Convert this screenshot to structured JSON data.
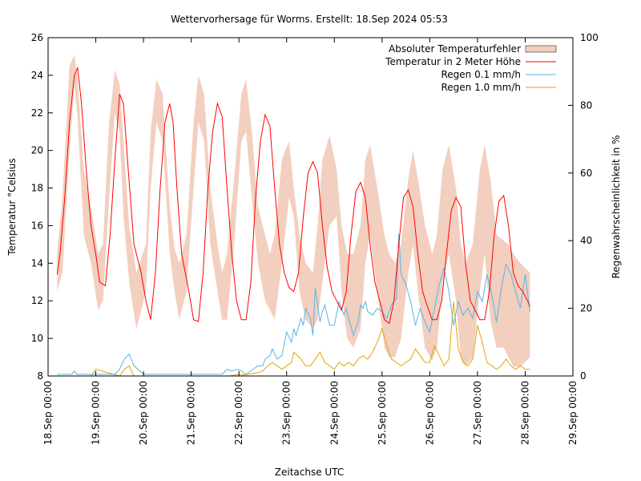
{
  "chart_data": {
    "type": "line",
    "title": "Wettervorhersage für Worms. Erstellt: 18.Sep 2024 05:53",
    "xlabel": "Zeitachse UTC",
    "ylabel_left": "Temperatur °Celsius",
    "ylabel_right": "Regenwahrscheinlichkeit in %",
    "x_unit": "days since 18.Sep 2024 00:00 UTC",
    "xlim": [
      0,
      11
    ],
    "ylim_left": [
      8,
      26
    ],
    "ylim_right": [
      0,
      100
    ],
    "x_ticks": [
      {
        "x": 0,
        "label": "18.Sep 00:00"
      },
      {
        "x": 1,
        "label": "19.Sep 00:00"
      },
      {
        "x": 2,
        "label": "20.Sep 00:00"
      },
      {
        "x": 3,
        "label": "21.Sep 00:00"
      },
      {
        "x": 4,
        "label": "22.Sep 00:00"
      },
      {
        "x": 5,
        "label": "23.Sep 00:00"
      },
      {
        "x": 6,
        "label": "24.Sep 00:00"
      },
      {
        "x": 7,
        "label": "25.Sep 00:00"
      },
      {
        "x": 8,
        "label": "26.Sep 00:00"
      },
      {
        "x": 9,
        "label": "27.Sep 00:00"
      },
      {
        "x": 10,
        "label": "28.Sep 00:00"
      },
      {
        "x": 11,
        "label": "29.Sep 00:00"
      }
    ],
    "y_left_ticks": [
      8,
      10,
      12,
      14,
      16,
      18,
      20,
      22,
      24,
      26
    ],
    "y_right_ticks": [
      0,
      20,
      40,
      60,
      80,
      100
    ],
    "grid": false,
    "legend_position": "top-right",
    "colors": {
      "error_band": "#f2cfbf",
      "temperature": "#ff0000",
      "rain01": "#56b4e9",
      "rain10": "#e6a000"
    },
    "series": [
      {
        "name": "Absoluter Temperaturfehler",
        "type": "band",
        "axis": "left",
        "x": [
          0.19,
          0.3,
          0.45,
          0.55,
          0.61,
          0.75,
          0.9,
          1.05,
          1.15,
          1.28,
          1.4,
          1.5,
          1.58,
          1.7,
          1.85,
          2.05,
          2.15,
          2.27,
          2.4,
          2.55,
          2.65,
          2.75,
          2.9,
          3.05,
          3.15,
          3.27,
          3.4,
          3.55,
          3.65,
          3.75,
          3.9,
          4.05,
          4.15,
          4.27,
          4.4,
          4.55,
          4.65,
          4.75,
          4.9,
          5.05,
          5.15,
          5.27,
          5.4,
          5.55,
          5.65,
          5.75,
          5.9,
          6.05,
          6.15,
          6.27,
          6.4,
          6.55,
          6.65,
          6.75,
          6.9,
          7.05,
          7.15,
          7.27,
          7.4,
          7.55,
          7.65,
          7.75,
          7.9,
          8.05,
          8.15,
          8.27,
          8.4,
          8.55,
          8.65,
          8.75,
          8.9,
          9.05,
          9.15,
          9.27,
          9.4,
          9.55,
          9.65,
          9.75,
          9.9,
          10.1
        ],
        "upper": [
          14.5,
          17.5,
          24.5,
          25.1,
          24.0,
          19.0,
          17.0,
          14.5,
          15.0,
          21.5,
          24.3,
          23.5,
          20.5,
          16.0,
          13.5,
          15.0,
          21.0,
          23.8,
          23.0,
          17.0,
          14.8,
          14.0,
          15.5,
          21.5,
          24.0,
          23.0,
          18.0,
          15.0,
          13.5,
          14.5,
          18.5,
          23.0,
          23.8,
          21.0,
          17.0,
          15.5,
          14.5,
          15.5,
          19.5,
          20.5,
          18.0,
          15.5,
          14.0,
          13.5,
          16.0,
          19.5,
          20.8,
          19.0,
          16.0,
          14.5,
          14.5,
          16.0,
          19.5,
          20.3,
          18.0,
          15.5,
          14.5,
          14.0,
          15.0,
          18.5,
          20.0,
          18.5,
          16.0,
          14.5,
          15.5,
          19.0,
          20.3,
          18.0,
          15.0,
          14.0,
          15.0,
          19.0,
          20.3,
          18.5,
          15.5,
          15.2,
          15.0,
          14.5,
          14.0,
          13.5
        ],
        "lower": [
          12.5,
          13.5,
          20.0,
          23.5,
          22.0,
          15.5,
          14.0,
          11.5,
          12.0,
          17.5,
          22.0,
          21.0,
          16.5,
          13.0,
          10.5,
          12.5,
          18.0,
          21.5,
          20.5,
          14.5,
          12.5,
          11.0,
          12.5,
          18.0,
          21.5,
          20.5,
          15.0,
          12.5,
          11.0,
          11.0,
          15.0,
          20.5,
          21.0,
          17.5,
          14.0,
          12.0,
          11.5,
          11.0,
          14.0,
          17.5,
          16.5,
          12.5,
          11.0,
          10.5,
          11.0,
          13.0,
          16.0,
          16.5,
          12.5,
          10.0,
          9.5,
          10.5,
          14.0,
          15.5,
          12.5,
          9.5,
          9.0,
          9.0,
          10.0,
          13.5,
          15.0,
          12.5,
          9.5,
          8.8,
          9.5,
          13.0,
          14.5,
          12.0,
          9.0,
          8.5,
          9.0,
          12.5,
          14.5,
          11.0,
          9.5,
          9.5,
          9.0,
          8.5,
          8.5,
          9.0
        ]
      },
      {
        "name": "Temperatur in 2 Meter Höhe",
        "type": "line",
        "axis": "left",
        "x": [
          0.19,
          0.25,
          0.35,
          0.45,
          0.55,
          0.62,
          0.7,
          0.8,
          0.9,
          1.0,
          1.08,
          1.2,
          1.3,
          1.4,
          1.5,
          1.58,
          1.68,
          1.8,
          1.95,
          2.05,
          2.15,
          2.25,
          2.35,
          2.45,
          2.55,
          2.62,
          2.7,
          2.8,
          2.95,
          3.05,
          3.15,
          3.25,
          3.35,
          3.45,
          3.55,
          3.65,
          3.75,
          3.85,
          3.95,
          4.05,
          4.15,
          4.25,
          4.35,
          4.45,
          4.55,
          4.65,
          4.75,
          4.85,
          4.95,
          5.05,
          5.15,
          5.25,
          5.35,
          5.45,
          5.55,
          5.65,
          5.75,
          5.85,
          5.95,
          6.05,
          6.15,
          6.25,
          6.35,
          6.45,
          6.55,
          6.65,
          6.75,
          6.85,
          6.95,
          7.05,
          7.15,
          7.25,
          7.35,
          7.45,
          7.55,
          7.65,
          7.75,
          7.85,
          7.95,
          8.05,
          8.15,
          8.25,
          8.35,
          8.45,
          8.55,
          8.65,
          8.75,
          8.85,
          8.95,
          9.05,
          9.15,
          9.25,
          9.35,
          9.45,
          9.55,
          9.65,
          9.75,
          9.85,
          9.95,
          10.05,
          10.1
        ],
        "y": [
          13.4,
          14.5,
          17.5,
          21.5,
          24.0,
          24.4,
          22.5,
          19.0,
          16.0,
          14.5,
          13.0,
          12.8,
          15.5,
          19.5,
          23.0,
          22.5,
          19.0,
          15.0,
          13.5,
          12.0,
          11.0,
          13.5,
          18.0,
          21.5,
          22.5,
          21.5,
          18.0,
          14.5,
          12.5,
          11.0,
          10.9,
          13.5,
          18.0,
          21.0,
          22.5,
          21.8,
          18.0,
          14.5,
          12.0,
          11.0,
          11.0,
          13.0,
          17.5,
          20.5,
          21.9,
          21.3,
          18.0,
          15.0,
          13.5,
          12.7,
          12.5,
          13.5,
          16.5,
          18.8,
          19.4,
          18.8,
          16.0,
          13.8,
          12.5,
          12.0,
          11.5,
          12.5,
          15.5,
          17.8,
          18.3,
          17.5,
          15.0,
          13.0,
          12.0,
          11.0,
          10.8,
          12.0,
          15.0,
          17.5,
          17.9,
          17.0,
          14.5,
          12.5,
          11.7,
          11.0,
          11.0,
          12.0,
          14.5,
          16.8,
          17.5,
          17.0,
          14.0,
          12.0,
          11.5,
          11.0,
          11.0,
          12.5,
          15.5,
          17.3,
          17.6,
          16.0,
          13.5,
          12.8,
          12.5,
          12.0,
          11.7
        ]
      },
      {
        "name": "Regen 0.1 mm/h",
        "type": "line",
        "axis": "right",
        "x": [
          0.19,
          0.5,
          0.55,
          0.6,
          0.7,
          0.8,
          1.0,
          1.2,
          1.4,
          1.5,
          1.6,
          1.7,
          1.8,
          2.0,
          2.5,
          3.0,
          3.5,
          3.65,
          3.75,
          3.85,
          3.95,
          4.05,
          4.15,
          4.3,
          4.4,
          4.5,
          4.55,
          4.65,
          4.7,
          4.8,
          4.9,
          5.0,
          5.1,
          5.15,
          5.2,
          5.3,
          5.35,
          5.4,
          5.5,
          5.55,
          5.6,
          5.7,
          5.75,
          5.8,
          5.9,
          6.0,
          6.1,
          6.2,
          6.25,
          6.3,
          6.4,
          6.5,
          6.55,
          6.6,
          6.65,
          6.7,
          6.8,
          6.9,
          7.0,
          7.1,
          7.2,
          7.3,
          7.35,
          7.4,
          7.5,
          7.6,
          7.7,
          7.8,
          7.9,
          8.0,
          8.1,
          8.2,
          8.3,
          8.4,
          8.5,
          8.6,
          8.7,
          8.8,
          8.9,
          9.0,
          9.1,
          9.2,
          9.3,
          9.4,
          9.5,
          9.6,
          9.7,
          9.8,
          9.9,
          10.0,
          10.1
        ],
        "y": [
          0.5,
          0.5,
          1.5,
          0.5,
          0.5,
          0.5,
          0.5,
          0.5,
          0.5,
          2,
          5,
          6.5,
          3,
          0.5,
          0.5,
          0.5,
          0.5,
          0.5,
          2,
          1.5,
          2,
          1.5,
          0.5,
          2,
          3,
          3,
          5,
          6,
          8,
          5,
          6,
          13,
          10,
          14,
          12,
          17,
          15,
          20,
          17,
          12,
          26,
          16,
          19,
          21,
          15,
          15,
          22,
          18,
          20,
          17,
          12,
          16,
          21,
          20,
          22,
          19,
          18,
          20,
          19,
          17,
          21,
          23,
          42,
          30,
          27,
          22,
          15,
          20,
          16,
          13,
          20,
          27,
          32,
          25,
          15,
          22,
          18,
          20,
          17,
          25,
          22,
          30,
          24,
          16,
          26,
          33,
          30,
          25,
          20,
          30,
          19
        ]
      },
      {
        "name": "Regen 1.0 mm/h",
        "type": "line",
        "axis": "right",
        "x": [
          0.19,
          0.5,
          0.9,
          1.0,
          1.5,
          1.6,
          1.7,
          1.8,
          2.0,
          3.0,
          3.5,
          3.6,
          3.8,
          4.0,
          4.1,
          4.4,
          4.5,
          4.6,
          4.7,
          4.8,
          4.9,
          5.0,
          5.1,
          5.15,
          5.3,
          5.4,
          5.5,
          5.6,
          5.7,
          5.8,
          5.9,
          6.0,
          6.1,
          6.2,
          6.3,
          6.4,
          6.5,
          6.6,
          6.7,
          6.8,
          6.9,
          7.0,
          7.1,
          7.2,
          7.3,
          7.4,
          7.5,
          7.6,
          7.7,
          7.8,
          7.9,
          8.0,
          8.1,
          8.2,
          8.3,
          8.4,
          8.5,
          8.6,
          8.7,
          8.8,
          8.9,
          9.0,
          9.1,
          9.2,
          9.3,
          9.4,
          9.5,
          9.6,
          9.7,
          9.8,
          9.9,
          10.0,
          10.1
        ],
        "y": [
          0,
          0,
          0,
          2,
          0,
          2,
          3,
          0,
          0,
          0,
          0,
          0,
          0,
          0.5,
          0.3,
          1,
          1.5,
          3,
          4,
          3,
          2,
          3,
          4,
          7,
          5,
          3,
          3,
          5,
          7,
          4,
          3,
          2,
          4,
          3,
          4,
          3,
          5,
          6,
          5,
          7,
          10,
          14,
          9,
          5,
          4,
          3,
          4,
          5,
          8,
          6,
          4,
          4,
          9,
          6,
          3,
          5,
          22,
          8,
          4,
          3,
          5,
          15,
          10,
          4,
          3,
          2,
          3,
          5,
          3,
          2,
          3,
          2,
          2
        ]
      }
    ]
  }
}
